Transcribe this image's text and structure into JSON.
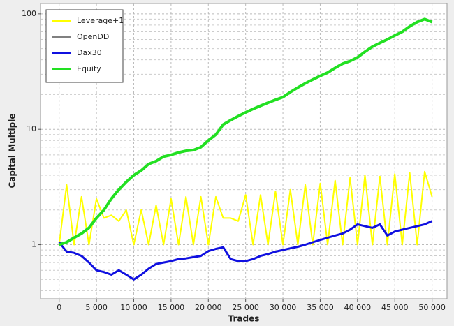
{
  "chart_data": {
    "type": "line",
    "x_label": "Trades",
    "y_label": "Capital Multiple",
    "log_y": true,
    "grid": true,
    "legend": "top-left",
    "xlim": [
      -2500,
      52000
    ],
    "ylim": [
      0.34,
      123
    ],
    "xticks": [
      0,
      {
        "value": 5000,
        "label": "5 000"
      },
      {
        "value": 10000,
        "label": "10 000"
      },
      {
        "value": 15000,
        "label": "15 000"
      },
      {
        "value": 20000,
        "label": "20 000"
      },
      {
        "value": 25000,
        "label": "25 000"
      },
      {
        "value": 30000,
        "label": "30 000"
      },
      {
        "value": 35000,
        "label": "35 000"
      },
      {
        "value": 40000,
        "label": "40 000"
      },
      {
        "value": 45000,
        "label": "45 000"
      },
      {
        "value": 50000,
        "label": "50 000"
      }
    ],
    "yticks": [
      1,
      10,
      100
    ],
    "yminorticks": [
      0.4,
      0.5,
      0.6,
      0.7,
      0.8,
      0.9,
      2,
      3,
      4,
      5,
      6,
      7,
      8,
      9,
      20,
      30,
      40,
      50,
      60,
      70,
      80,
      90
    ],
    "x": [
      0,
      1000,
      2000,
      3000,
      4000,
      5000,
      6000,
      7000,
      8000,
      9000,
      10000,
      11000,
      12000,
      13000,
      14000,
      15000,
      16000,
      17000,
      18000,
      19000,
      20000,
      21000,
      22000,
      23000,
      24000,
      25000,
      26000,
      27000,
      28000,
      29000,
      30000,
      31000,
      32000,
      33000,
      34000,
      35000,
      36000,
      37000,
      38000,
      39000,
      40000,
      41000,
      42000,
      43000,
      44000,
      45000,
      46000,
      47000,
      48000,
      49000,
      50000
    ],
    "series": [
      {
        "name": "Leverage+1",
        "color": "#ffff00",
        "width": 2,
        "values": [
          1,
          3.3,
          1,
          2.6,
          1,
          2.5,
          1.7,
          1.8,
          1.6,
          2.0,
          1,
          2.0,
          1,
          2.2,
          1,
          2.5,
          1,
          2.6,
          1,
          2.6,
          1,
          2.6,
          1.7,
          1.7,
          1.6,
          2.7,
          1,
          2.7,
          1,
          2.9,
          1,
          3.0,
          1,
          3.3,
          1,
          3.4,
          1,
          3.6,
          1,
          3.8,
          1,
          4.0,
          1,
          3.9,
          1,
          4.1,
          1,
          4.2,
          1,
          4.3,
          2.6
        ]
      },
      {
        "name": "OpenDD",
        "color": "#808080",
        "width": 2,
        "values": [
          1.05,
          1.05,
          null,
          null,
          null,
          null,
          null,
          null,
          null,
          null,
          null,
          null,
          null,
          null,
          null,
          null,
          null,
          null,
          null,
          null,
          null,
          null,
          null,
          null,
          null,
          null,
          null,
          null,
          null,
          null,
          null,
          null,
          null,
          null,
          null,
          null,
          null,
          null,
          null,
          null,
          null,
          null,
          null,
          null,
          null,
          null,
          null,
          null,
          null,
          null,
          null
        ]
      },
      {
        "name": "Dax30",
        "color": "#1010e0",
        "width": 3,
        "values": [
          1.05,
          0.87,
          0.85,
          0.8,
          0.7,
          0.6,
          0.58,
          0.55,
          0.6,
          0.55,
          0.5,
          0.55,
          0.62,
          0.68,
          0.7,
          0.72,
          0.75,
          0.76,
          0.78,
          0.8,
          0.88,
          0.92,
          0.95,
          0.75,
          0.72,
          0.72,
          0.75,
          0.8,
          0.83,
          0.87,
          0.9,
          0.93,
          0.96,
          1.0,
          1.05,
          1.1,
          1.15,
          1.2,
          1.25,
          1.35,
          1.5,
          1.45,
          1.4,
          1.5,
          1.2,
          1.3,
          1.35,
          1.4,
          1.45,
          1.5,
          1.6
        ]
      },
      {
        "name": "Equity",
        "color": "#22e022",
        "width": 4,
        "values": [
          1.0,
          1.05,
          1.15,
          1.25,
          1.4,
          1.7,
          2.0,
          2.5,
          3.0,
          3.5,
          4.0,
          4.4,
          5.0,
          5.3,
          5.8,
          6.0,
          6.3,
          6.5,
          6.6,
          7.0,
          8.0,
          9.0,
          11,
          12,
          13,
          14,
          15,
          16,
          17,
          18,
          19,
          21,
          23,
          25,
          27,
          29,
          31,
          34,
          37,
          39,
          42,
          47,
          52,
          56,
          60,
          65,
          70,
          78,
          85,
          90,
          85
        ]
      }
    ]
  }
}
